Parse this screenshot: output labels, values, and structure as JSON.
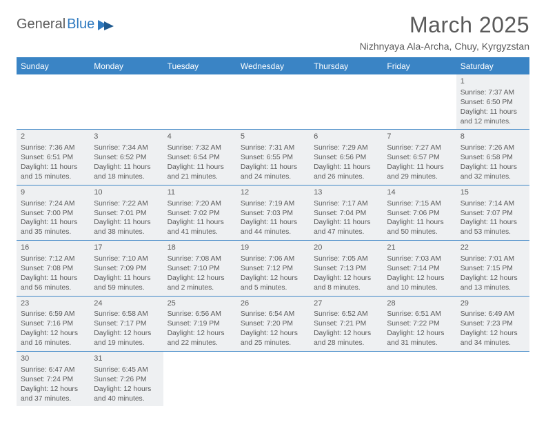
{
  "logo": {
    "text1": "General",
    "text2": "Blue"
  },
  "title": "March 2025",
  "location": "Nizhnyaya Ala-Archa, Chuy, Kyrgyzstan",
  "colors": {
    "header_bg": "#3a84c5",
    "header_text": "#ffffff",
    "cell_shade": "#eef0f2",
    "text": "#5a5a5a",
    "rule": "#3a84c5"
  },
  "weekdays": [
    "Sunday",
    "Monday",
    "Tuesday",
    "Wednesday",
    "Thursday",
    "Friday",
    "Saturday"
  ],
  "weeks": [
    [
      null,
      null,
      null,
      null,
      null,
      null,
      {
        "d": "1",
        "sr": "Sunrise: 7:37 AM",
        "ss": "Sunset: 6:50 PM",
        "dl": "Daylight: 11 hours and 12 minutes."
      }
    ],
    [
      {
        "d": "2",
        "sr": "Sunrise: 7:36 AM",
        "ss": "Sunset: 6:51 PM",
        "dl": "Daylight: 11 hours and 15 minutes."
      },
      {
        "d": "3",
        "sr": "Sunrise: 7:34 AM",
        "ss": "Sunset: 6:52 PM",
        "dl": "Daylight: 11 hours and 18 minutes."
      },
      {
        "d": "4",
        "sr": "Sunrise: 7:32 AM",
        "ss": "Sunset: 6:54 PM",
        "dl": "Daylight: 11 hours and 21 minutes."
      },
      {
        "d": "5",
        "sr": "Sunrise: 7:31 AM",
        "ss": "Sunset: 6:55 PM",
        "dl": "Daylight: 11 hours and 24 minutes."
      },
      {
        "d": "6",
        "sr": "Sunrise: 7:29 AM",
        "ss": "Sunset: 6:56 PM",
        "dl": "Daylight: 11 hours and 26 minutes."
      },
      {
        "d": "7",
        "sr": "Sunrise: 7:27 AM",
        "ss": "Sunset: 6:57 PM",
        "dl": "Daylight: 11 hours and 29 minutes."
      },
      {
        "d": "8",
        "sr": "Sunrise: 7:26 AM",
        "ss": "Sunset: 6:58 PM",
        "dl": "Daylight: 11 hours and 32 minutes."
      }
    ],
    [
      {
        "d": "9",
        "sr": "Sunrise: 7:24 AM",
        "ss": "Sunset: 7:00 PM",
        "dl": "Daylight: 11 hours and 35 minutes."
      },
      {
        "d": "10",
        "sr": "Sunrise: 7:22 AM",
        "ss": "Sunset: 7:01 PM",
        "dl": "Daylight: 11 hours and 38 minutes."
      },
      {
        "d": "11",
        "sr": "Sunrise: 7:20 AM",
        "ss": "Sunset: 7:02 PM",
        "dl": "Daylight: 11 hours and 41 minutes."
      },
      {
        "d": "12",
        "sr": "Sunrise: 7:19 AM",
        "ss": "Sunset: 7:03 PM",
        "dl": "Daylight: 11 hours and 44 minutes."
      },
      {
        "d": "13",
        "sr": "Sunrise: 7:17 AM",
        "ss": "Sunset: 7:04 PM",
        "dl": "Daylight: 11 hours and 47 minutes."
      },
      {
        "d": "14",
        "sr": "Sunrise: 7:15 AM",
        "ss": "Sunset: 7:06 PM",
        "dl": "Daylight: 11 hours and 50 minutes."
      },
      {
        "d": "15",
        "sr": "Sunrise: 7:14 AM",
        "ss": "Sunset: 7:07 PM",
        "dl": "Daylight: 11 hours and 53 minutes."
      }
    ],
    [
      {
        "d": "16",
        "sr": "Sunrise: 7:12 AM",
        "ss": "Sunset: 7:08 PM",
        "dl": "Daylight: 11 hours and 56 minutes."
      },
      {
        "d": "17",
        "sr": "Sunrise: 7:10 AM",
        "ss": "Sunset: 7:09 PM",
        "dl": "Daylight: 11 hours and 59 minutes."
      },
      {
        "d": "18",
        "sr": "Sunrise: 7:08 AM",
        "ss": "Sunset: 7:10 PM",
        "dl": "Daylight: 12 hours and 2 minutes."
      },
      {
        "d": "19",
        "sr": "Sunrise: 7:06 AM",
        "ss": "Sunset: 7:12 PM",
        "dl": "Daylight: 12 hours and 5 minutes."
      },
      {
        "d": "20",
        "sr": "Sunrise: 7:05 AM",
        "ss": "Sunset: 7:13 PM",
        "dl": "Daylight: 12 hours and 8 minutes."
      },
      {
        "d": "21",
        "sr": "Sunrise: 7:03 AM",
        "ss": "Sunset: 7:14 PM",
        "dl": "Daylight: 12 hours and 10 minutes."
      },
      {
        "d": "22",
        "sr": "Sunrise: 7:01 AM",
        "ss": "Sunset: 7:15 PM",
        "dl": "Daylight: 12 hours and 13 minutes."
      }
    ],
    [
      {
        "d": "23",
        "sr": "Sunrise: 6:59 AM",
        "ss": "Sunset: 7:16 PM",
        "dl": "Daylight: 12 hours and 16 minutes."
      },
      {
        "d": "24",
        "sr": "Sunrise: 6:58 AM",
        "ss": "Sunset: 7:17 PM",
        "dl": "Daylight: 12 hours and 19 minutes."
      },
      {
        "d": "25",
        "sr": "Sunrise: 6:56 AM",
        "ss": "Sunset: 7:19 PM",
        "dl": "Daylight: 12 hours and 22 minutes."
      },
      {
        "d": "26",
        "sr": "Sunrise: 6:54 AM",
        "ss": "Sunset: 7:20 PM",
        "dl": "Daylight: 12 hours and 25 minutes."
      },
      {
        "d": "27",
        "sr": "Sunrise: 6:52 AM",
        "ss": "Sunset: 7:21 PM",
        "dl": "Daylight: 12 hours and 28 minutes."
      },
      {
        "d": "28",
        "sr": "Sunrise: 6:51 AM",
        "ss": "Sunset: 7:22 PM",
        "dl": "Daylight: 12 hours and 31 minutes."
      },
      {
        "d": "29",
        "sr": "Sunrise: 6:49 AM",
        "ss": "Sunset: 7:23 PM",
        "dl": "Daylight: 12 hours and 34 minutes."
      }
    ],
    [
      {
        "d": "30",
        "sr": "Sunrise: 6:47 AM",
        "ss": "Sunset: 7:24 PM",
        "dl": "Daylight: 12 hours and 37 minutes."
      },
      {
        "d": "31",
        "sr": "Sunrise: 6:45 AM",
        "ss": "Sunset: 7:26 PM",
        "dl": "Daylight: 12 hours and 40 minutes."
      },
      null,
      null,
      null,
      null,
      null
    ]
  ]
}
